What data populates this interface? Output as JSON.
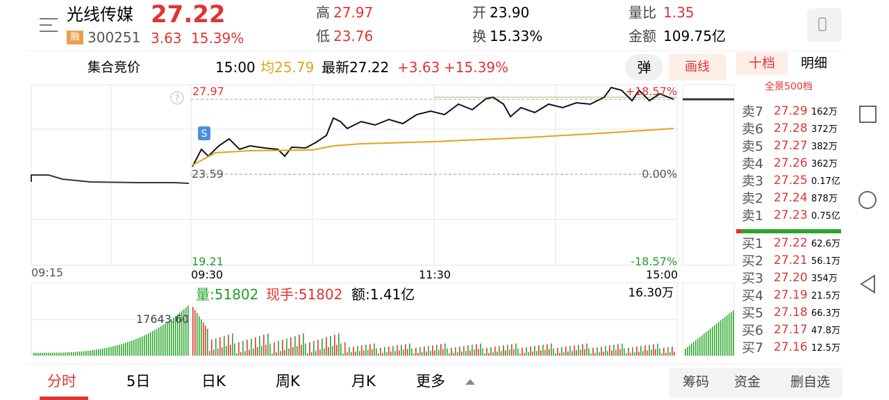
{
  "header": {
    "name": "光线传媒",
    "price": "27.22",
    "badge": "融",
    "code": "300251",
    "change": "3.63",
    "pct": "15.39%",
    "stats": [
      {
        "label": "高",
        "value": "27.97"
      },
      {
        "label": "开",
        "value": "23.90"
      },
      {
        "label": "量比",
        "value": "1.35"
      },
      {
        "label": "低",
        "value": "23.76"
      },
      {
        "label": "换",
        "value": "15.33%"
      },
      {
        "label": "金额",
        "value": "109.75亿"
      }
    ]
  },
  "bar": {
    "auction": "集合竞价",
    "time": "15:00",
    "avg": "均25.79",
    "latest": "最新27.22",
    "change": "+3.63",
    "pct": "+15.39%",
    "popup": "弹",
    "draw": "画线"
  },
  "chart": {
    "high": "27.97",
    "base": "23.59",
    "low": "19.21",
    "high_pct": "+18.57%",
    "base_pct": "0.00%",
    "low_pct": "-18.57%",
    "times": [
      "09:15",
      "09:30",
      "11:30",
      "15:00"
    ],
    "volume": "量:51802",
    "hand": "现手:51802",
    "amount": "额:1.41亿",
    "vol_max": "16.30万",
    "pre_vol": "17643.60"
  },
  "book": {
    "tabs": [
      "十档",
      "明细"
    ],
    "title": "全景500档",
    "asks": [
      [
        "卖7",
        "27.29",
        "162万"
      ],
      [
        "卖6",
        "27.28",
        "372万"
      ],
      [
        "卖5",
        "27.27",
        "382万"
      ],
      [
        "卖4",
        "27.26",
        "362万"
      ],
      [
        "卖3",
        "27.25",
        "0.17亿"
      ],
      [
        "卖2",
        "27.24",
        "878万"
      ],
      [
        "卖1",
        "27.23",
        "0.75亿"
      ]
    ],
    "bids": [
      [
        "买1",
        "27.22",
        "62.6万"
      ],
      [
        "买2",
        "27.21",
        "56.1万"
      ],
      [
        "买3",
        "27.20",
        "354万"
      ],
      [
        "买4",
        "27.19",
        "21.5万"
      ],
      [
        "买5",
        "27.18",
        "66.3万"
      ],
      [
        "买6",
        "27.17",
        "47.8万"
      ],
      [
        "买7",
        "27.16",
        "12.5万"
      ]
    ]
  },
  "tabs": [
    "分时",
    "5日",
    "日K",
    "周K",
    "月K",
    "更多"
  ],
  "buttons": [
    "筹码",
    "资金",
    "删自选"
  ]
}
